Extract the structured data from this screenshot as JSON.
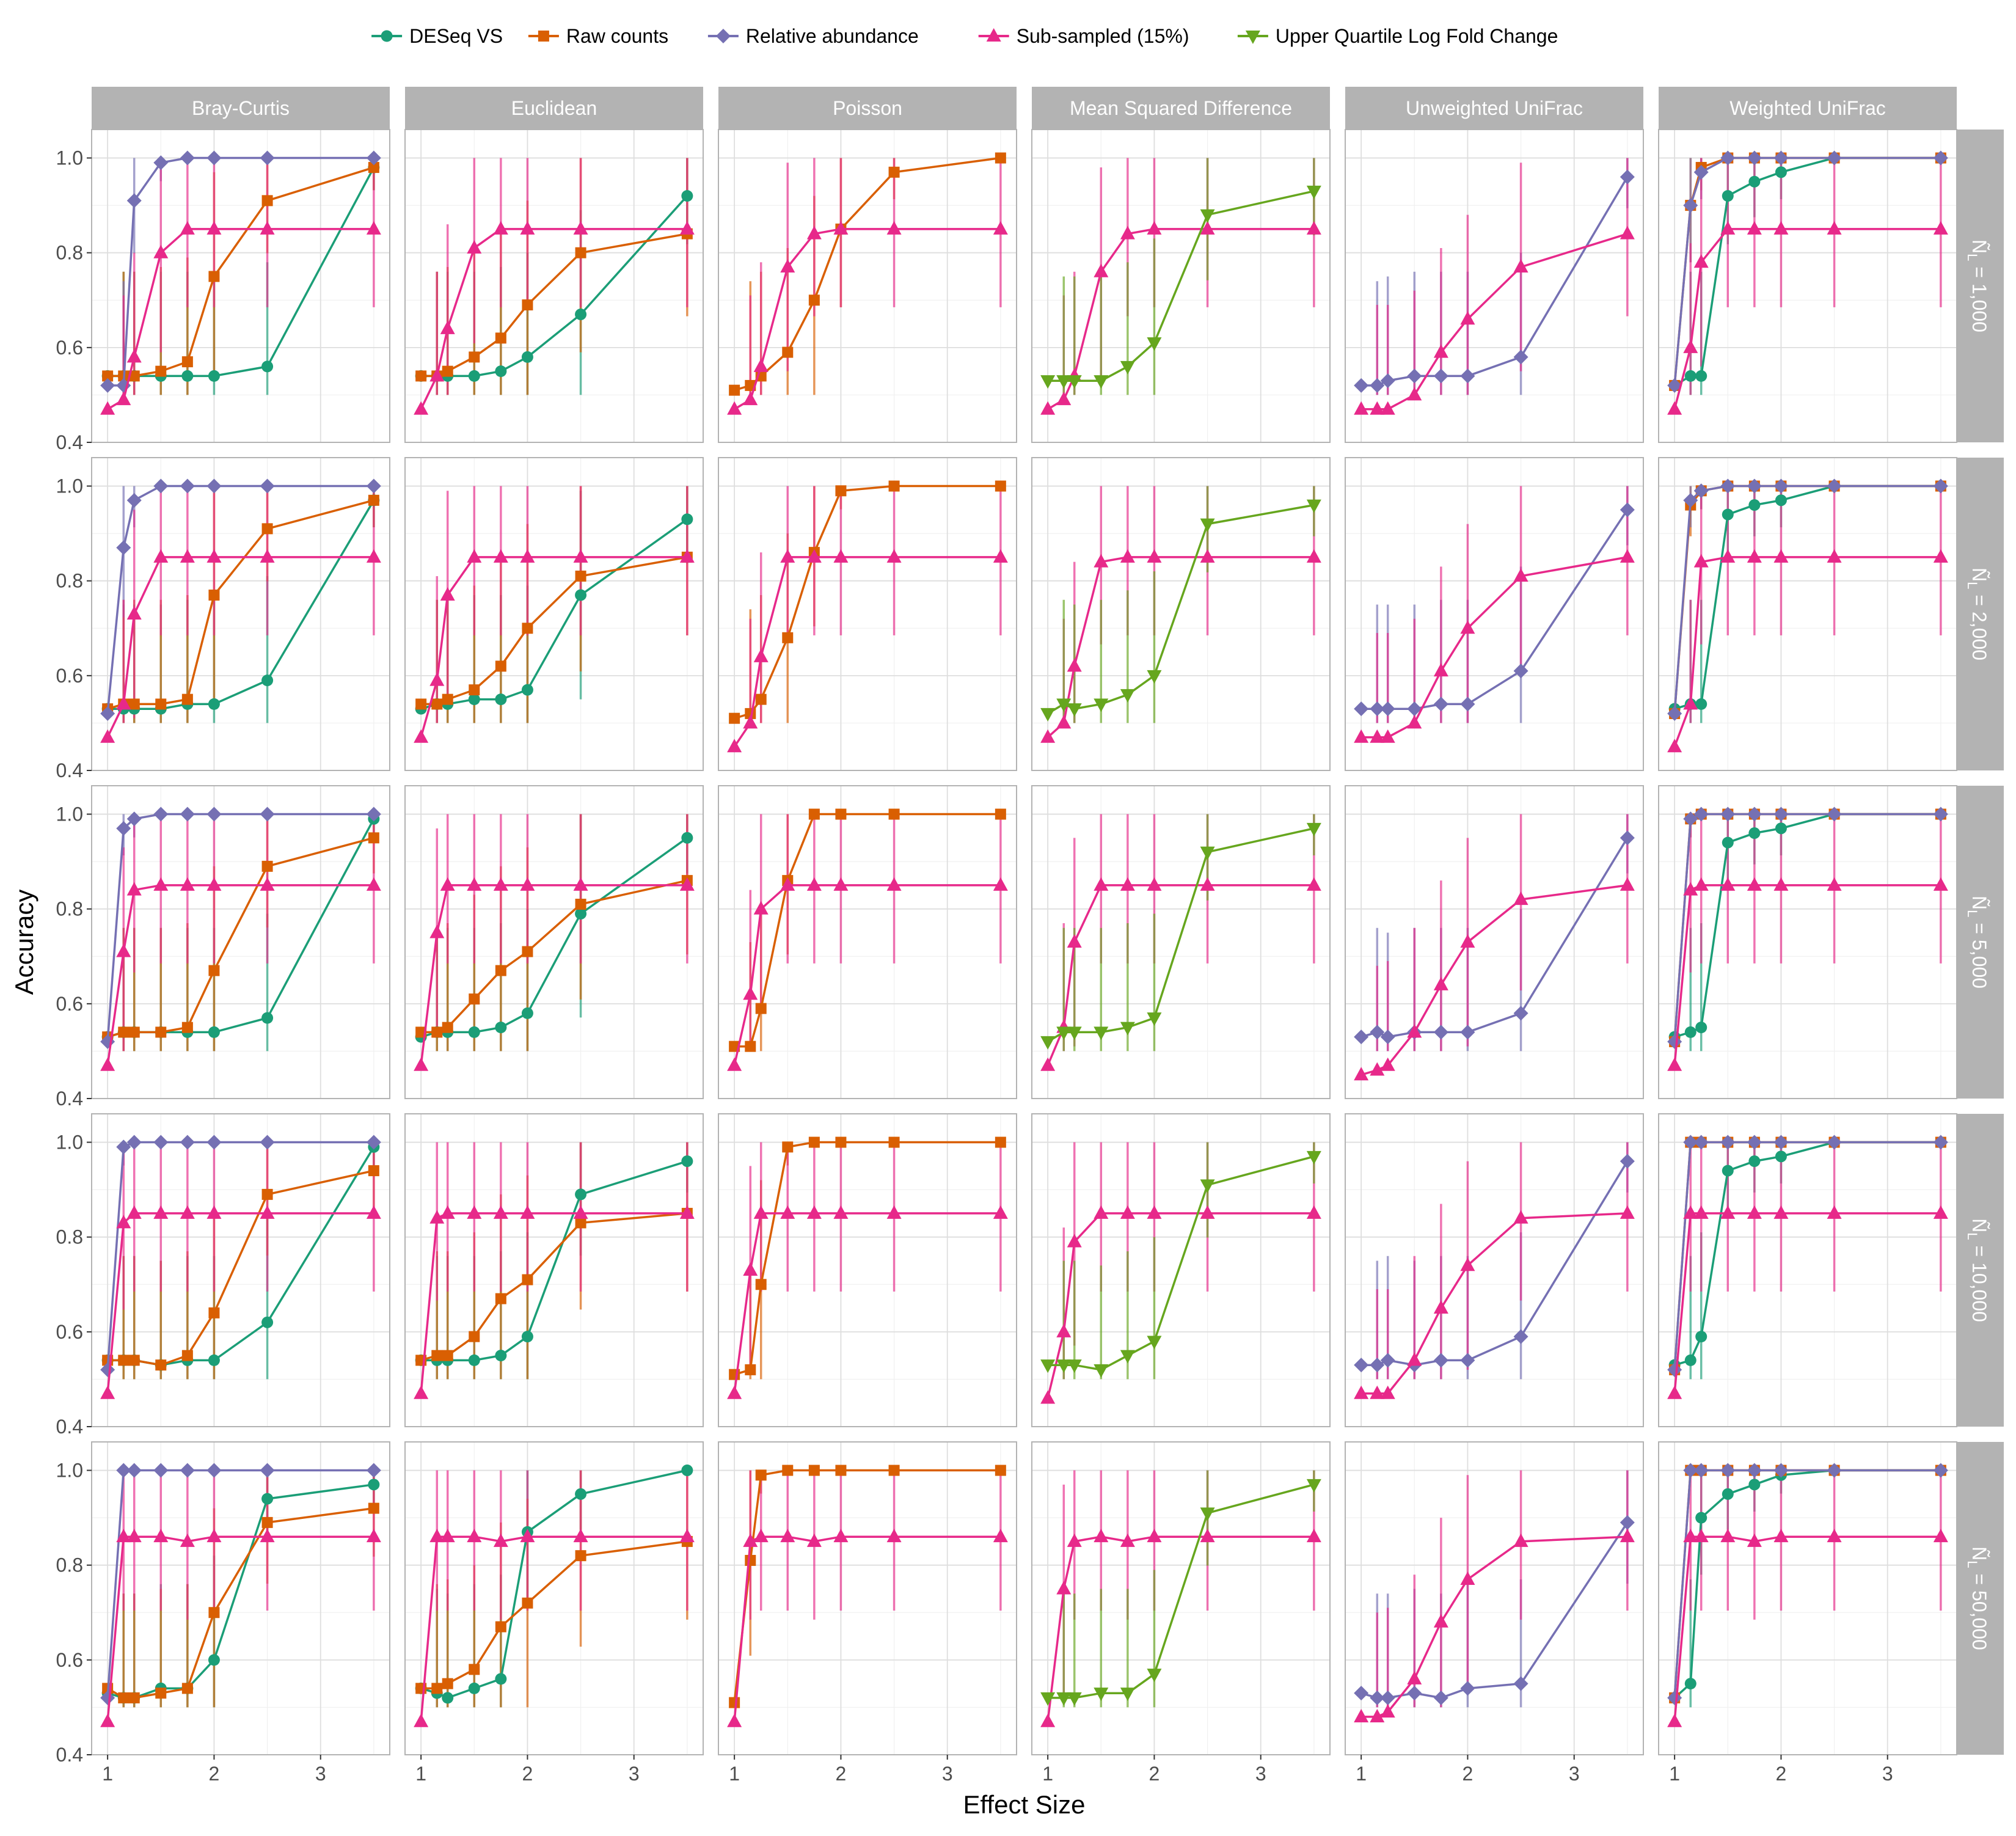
{
  "legend": {
    "items": [
      {
        "name": "DESeq VS",
        "color": "#1b9e77",
        "shape": "circle"
      },
      {
        "name": "Raw counts",
        "color": "#d95f02",
        "shape": "square"
      },
      {
        "name": "Relative abundance",
        "color": "#7570b3",
        "shape": "diamond"
      },
      {
        "name": "Sub-sampled (15%)",
        "color": "#e7298a",
        "shape": "triangle-up"
      },
      {
        "name": "Upper Quartile Log Fold Change",
        "color": "#66a61e",
        "shape": "triangle-down"
      }
    ]
  },
  "axes": {
    "xlabel": "Effect Size",
    "ylabel": "Accuracy",
    "x_ticks": [
      "1",
      "2",
      "3"
    ],
    "y_ticks": [
      "0.4",
      "0.6",
      "0.8",
      "1.0"
    ]
  },
  "chart_data": {
    "type": "line",
    "layout": "facet_grid",
    "xlim": [
      0.85,
      3.65
    ],
    "ylim": [
      0.4,
      1.06
    ],
    "x": [
      1.0,
      1.15,
      1.25,
      1.5,
      1.75,
      2.0,
      2.5,
      3.5
    ],
    "columns": [
      "Bray-Curtis",
      "Euclidean",
      "Poisson",
      "Mean Squared Difference",
      "Unweighted UniFrac",
      "Weighted UniFrac"
    ],
    "rows": [
      "Ñ_L = 1,000",
      "Ñ_L = 2,000",
      "Ñ_L = 5,000",
      "Ñ_L = 10,000",
      "Ñ_L = 50,000"
    ],
    "row_label_prefix": "Ñ",
    "row_label_sub": "L",
    "row_label_values": [
      "= 1,000",
      "= 2,000",
      "= 5,000",
      "= 10,000",
      "= 50,000"
    ],
    "grid": true,
    "series_by_column": [
      [
        "DESeq VS",
        "Raw counts",
        "Relative abundance",
        "Sub-sampled (15%)"
      ],
      [
        "DESeq VS",
        "Raw counts",
        "Sub-sampled (15%)"
      ],
      [
        "Raw counts",
        "Sub-sampled (15%)"
      ],
      [
        "Sub-sampled (15%)",
        "Upper Quartile Log Fold Change"
      ],
      [
        "Relative abundance",
        "Sub-sampled (15%)"
      ],
      [
        "DESeq VS",
        "Raw counts",
        "Relative abundance",
        "Sub-sampled (15%)"
      ]
    ],
    "values": [
      [
        {
          "DESeq VS": [
            0.54,
            0.54,
            0.54,
            0.54,
            0.54,
            0.54,
            0.56,
            0.98
          ],
          "Raw counts": [
            0.54,
            0.54,
            0.54,
            0.55,
            0.57,
            0.75,
            0.91,
            0.98
          ],
          "Relative abundance": [
            0.52,
            0.52,
            0.91,
            0.99,
            1.0,
            1.0,
            1.0,
            1.0
          ],
          "Sub-sampled (15%)": [
            0.47,
            0.49,
            0.58,
            0.8,
            0.85,
            0.85,
            0.85,
            0.85
          ]
        },
        {
          "DESeq VS": [
            0.54,
            0.54,
            0.54,
            0.54,
            0.55,
            0.58,
            0.67,
            0.92
          ],
          "Raw counts": [
            0.54,
            0.54,
            0.55,
            0.58,
            0.62,
            0.69,
            0.8,
            0.84
          ],
          "Sub-sampled (15%)": [
            0.47,
            0.54,
            0.64,
            0.81,
            0.85,
            0.85,
            0.85,
            0.85
          ]
        },
        {
          "Raw counts": [
            0.51,
            0.52,
            0.54,
            0.59,
            0.7,
            0.85,
            0.97,
            1.0
          ],
          "Sub-sampled (15%)": [
            0.47,
            0.49,
            0.56,
            0.77,
            0.84,
            0.85,
            0.85,
            0.85
          ]
        },
        {
          "Sub-sampled (15%)": [
            0.47,
            0.49,
            0.54,
            0.76,
            0.84,
            0.85,
            0.85,
            0.85
          ],
          "Upper Quartile Log Fold Change": [
            0.53,
            0.53,
            0.53,
            0.53,
            0.56,
            0.61,
            0.88,
            0.93
          ]
        },
        {
          "Relative abundance": [
            0.52,
            0.52,
            0.53,
            0.54,
            0.54,
            0.54,
            0.58,
            0.96
          ],
          "Sub-sampled (15%)": [
            0.47,
            0.47,
            0.47,
            0.5,
            0.59,
            0.66,
            0.77,
            0.84
          ]
        },
        {
          "DESeq VS": [
            0.52,
            0.54,
            0.54,
            0.92,
            0.95,
            0.97,
            1.0,
            1.0
          ],
          "Raw counts": [
            0.52,
            0.9,
            0.98,
            1.0,
            1.0,
            1.0,
            1.0,
            1.0
          ],
          "Relative abundance": [
            0.52,
            0.9,
            0.97,
            1.0,
            1.0,
            1.0,
            1.0,
            1.0
          ],
          "Sub-sampled (15%)": [
            0.47,
            0.6,
            0.78,
            0.85,
            0.85,
            0.85,
            0.85,
            0.85
          ]
        }
      ],
      [
        {
          "DESeq VS": [
            0.53,
            0.53,
            0.53,
            0.53,
            0.54,
            0.54,
            0.59,
            0.97
          ],
          "Raw counts": [
            0.53,
            0.54,
            0.54,
            0.54,
            0.55,
            0.77,
            0.91,
            0.97
          ],
          "Relative abundance": [
            0.52,
            0.87,
            0.97,
            1.0,
            1.0,
            1.0,
            1.0,
            1.0
          ],
          "Sub-sampled (15%)": [
            0.47,
            0.54,
            0.73,
            0.85,
            0.85,
            0.85,
            0.85,
            0.85
          ]
        },
        {
          "DESeq VS": [
            0.53,
            0.54,
            0.54,
            0.55,
            0.55,
            0.57,
            0.77,
            0.93
          ],
          "Raw counts": [
            0.54,
            0.54,
            0.55,
            0.57,
            0.62,
            0.7,
            0.81,
            0.85
          ],
          "Sub-sampled (15%)": [
            0.47,
            0.59,
            0.77,
            0.85,
            0.85,
            0.85,
            0.85,
            0.85
          ]
        },
        {
          "Raw counts": [
            0.51,
            0.52,
            0.55,
            0.68,
            0.86,
            0.99,
            1.0,
            1.0
          ],
          "Sub-sampled (15%)": [
            0.45,
            0.5,
            0.64,
            0.85,
            0.85,
            0.85,
            0.85,
            0.85
          ]
        },
        {
          "Sub-sampled (15%)": [
            0.47,
            0.5,
            0.62,
            0.84,
            0.85,
            0.85,
            0.85,
            0.85
          ],
          "Upper Quartile Log Fold Change": [
            0.52,
            0.54,
            0.53,
            0.54,
            0.56,
            0.6,
            0.92,
            0.96
          ]
        },
        {
          "Relative abundance": [
            0.53,
            0.53,
            0.53,
            0.53,
            0.54,
            0.54,
            0.61,
            0.95
          ],
          "Sub-sampled (15%)": [
            0.47,
            0.47,
            0.47,
            0.5,
            0.61,
            0.7,
            0.81,
            0.85
          ]
        },
        {
          "DESeq VS": [
            0.53,
            0.54,
            0.54,
            0.94,
            0.96,
            0.97,
            1.0,
            1.0
          ],
          "Raw counts": [
            0.52,
            0.96,
            0.99,
            1.0,
            1.0,
            1.0,
            1.0,
            1.0
          ],
          "Relative abundance": [
            0.52,
            0.97,
            0.99,
            1.0,
            1.0,
            1.0,
            1.0,
            1.0
          ],
          "Sub-sampled (15%)": [
            0.45,
            0.54,
            0.84,
            0.85,
            0.85,
            0.85,
            0.85,
            0.85
          ]
        }
      ],
      [
        {
          "DESeq VS": [
            0.53,
            0.54,
            0.54,
            0.54,
            0.54,
            0.54,
            0.57,
            0.99
          ],
          "Raw counts": [
            0.53,
            0.54,
            0.54,
            0.54,
            0.55,
            0.67,
            0.89,
            0.95
          ],
          "Relative abundance": [
            0.52,
            0.97,
            0.99,
            1.0,
            1.0,
            1.0,
            1.0,
            1.0
          ],
          "Sub-sampled (15%)": [
            0.47,
            0.71,
            0.84,
            0.85,
            0.85,
            0.85,
            0.85,
            0.85
          ]
        },
        {
          "DESeq VS": [
            0.53,
            0.54,
            0.54,
            0.54,
            0.55,
            0.58,
            0.79,
            0.95
          ],
          "Raw counts": [
            0.54,
            0.54,
            0.55,
            0.61,
            0.67,
            0.71,
            0.81,
            0.86
          ],
          "Sub-sampled (15%)": [
            0.47,
            0.75,
            0.85,
            0.85,
            0.85,
            0.85,
            0.85,
            0.85
          ]
        },
        {
          "Raw counts": [
            0.51,
            0.51,
            0.59,
            0.86,
            1.0,
            1.0,
            1.0,
            1.0
          ],
          "Sub-sampled (15%)": [
            0.47,
            0.62,
            0.8,
            0.85,
            0.85,
            0.85,
            0.85,
            0.85
          ]
        },
        {
          "Sub-sampled (15%)": [
            0.47,
            0.55,
            0.73,
            0.85,
            0.85,
            0.85,
            0.85,
            0.85
          ],
          "Upper Quartile Log Fold Change": [
            0.52,
            0.54,
            0.54,
            0.54,
            0.55,
            0.57,
            0.92,
            0.97
          ]
        },
        {
          "Relative abundance": [
            0.53,
            0.54,
            0.53,
            0.54,
            0.54,
            0.54,
            0.58,
            0.95
          ],
          "Sub-sampled (15%)": [
            0.45,
            0.46,
            0.47,
            0.54,
            0.64,
            0.73,
            0.82,
            0.85
          ]
        },
        {
          "DESeq VS": [
            0.53,
            0.54,
            0.55,
            0.94,
            0.96,
            0.97,
            1.0,
            1.0
          ],
          "Raw counts": [
            0.52,
            0.99,
            1.0,
            1.0,
            1.0,
            1.0,
            1.0,
            1.0
          ],
          "Relative abundance": [
            0.52,
            0.99,
            1.0,
            1.0,
            1.0,
            1.0,
            1.0,
            1.0
          ],
          "Sub-sampled (15%)": [
            0.47,
            0.84,
            0.85,
            0.85,
            0.85,
            0.85,
            0.85,
            0.85
          ]
        }
      ],
      [
        {
          "DESeq VS": [
            0.54,
            0.54,
            0.54,
            0.53,
            0.54,
            0.54,
            0.62,
            0.99
          ],
          "Raw counts": [
            0.54,
            0.54,
            0.54,
            0.53,
            0.55,
            0.64,
            0.89,
            0.94
          ],
          "Relative abundance": [
            0.52,
            0.99,
            1.0,
            1.0,
            1.0,
            1.0,
            1.0,
            1.0
          ],
          "Sub-sampled (15%)": [
            0.47,
            0.83,
            0.85,
            0.85,
            0.85,
            0.85,
            0.85,
            0.85
          ]
        },
        {
          "DESeq VS": [
            0.54,
            0.54,
            0.54,
            0.54,
            0.55,
            0.59,
            0.89,
            0.96
          ],
          "Raw counts": [
            0.54,
            0.55,
            0.55,
            0.59,
            0.67,
            0.71,
            0.83,
            0.85
          ],
          "Sub-sampled (15%)": [
            0.47,
            0.84,
            0.85,
            0.85,
            0.85,
            0.85,
            0.85,
            0.85
          ]
        },
        {
          "Raw counts": [
            0.51,
            0.52,
            0.7,
            0.99,
            1.0,
            1.0,
            1.0,
            1.0
          ],
          "Sub-sampled (15%)": [
            0.47,
            0.73,
            0.85,
            0.85,
            0.85,
            0.85,
            0.85,
            0.85
          ]
        },
        {
          "Sub-sampled (15%)": [
            0.46,
            0.6,
            0.79,
            0.85,
            0.85,
            0.85,
            0.85,
            0.85
          ],
          "Upper Quartile Log Fold Change": [
            0.53,
            0.53,
            0.53,
            0.52,
            0.55,
            0.58,
            0.91,
            0.97
          ]
        },
        {
          "Relative abundance": [
            0.53,
            0.53,
            0.54,
            0.53,
            0.54,
            0.54,
            0.59,
            0.96
          ],
          "Sub-sampled (15%)": [
            0.47,
            0.47,
            0.47,
            0.54,
            0.65,
            0.74,
            0.84,
            0.85
          ]
        },
        {
          "DESeq VS": [
            0.53,
            0.54,
            0.59,
            0.94,
            0.96,
            0.97,
            1.0,
            1.0
          ],
          "Raw counts": [
            0.52,
            1.0,
            1.0,
            1.0,
            1.0,
            1.0,
            1.0,
            1.0
          ],
          "Relative abundance": [
            0.52,
            1.0,
            1.0,
            1.0,
            1.0,
            1.0,
            1.0,
            1.0
          ],
          "Sub-sampled (15%)": [
            0.47,
            0.85,
            0.85,
            0.85,
            0.85,
            0.85,
            0.85,
            0.85
          ]
        }
      ],
      [
        {
          "DESeq VS": [
            0.53,
            0.52,
            0.52,
            0.54,
            0.54,
            0.6,
            0.94,
            0.97
          ],
          "Raw counts": [
            0.54,
            0.52,
            0.52,
            0.53,
            0.54,
            0.7,
            0.89,
            0.92
          ],
          "Relative abundance": [
            0.52,
            1.0,
            1.0,
            1.0,
            1.0,
            1.0,
            1.0,
            1.0
          ],
          "Sub-sampled (15%)": [
            0.47,
            0.86,
            0.86,
            0.86,
            0.85,
            0.86,
            0.86,
            0.86
          ]
        },
        {
          "DESeq VS": [
            0.54,
            0.53,
            0.52,
            0.54,
            0.56,
            0.87,
            0.95,
            1.0
          ],
          "Raw counts": [
            0.54,
            0.54,
            0.55,
            0.58,
            0.67,
            0.72,
            0.82,
            0.85
          ],
          "Sub-sampled (15%)": [
            0.47,
            0.86,
            0.86,
            0.86,
            0.85,
            0.86,
            0.86,
            0.86
          ]
        },
        {
          "Raw counts": [
            0.51,
            0.81,
            0.99,
            1.0,
            1.0,
            1.0,
            1.0,
            1.0
          ],
          "Sub-sampled (15%)": [
            0.47,
            0.85,
            0.86,
            0.86,
            0.85,
            0.86,
            0.86,
            0.86
          ]
        },
        {
          "Sub-sampled (15%)": [
            0.47,
            0.75,
            0.85,
            0.86,
            0.85,
            0.86,
            0.86,
            0.86
          ],
          "Upper Quartile Log Fold Change": [
            0.52,
            0.52,
            0.52,
            0.53,
            0.53,
            0.57,
            0.91,
            0.97
          ]
        },
        {
          "Relative abundance": [
            0.53,
            0.52,
            0.52,
            0.53,
            0.52,
            0.54,
            0.55,
            0.89
          ],
          "Sub-sampled (15%)": [
            0.48,
            0.48,
            0.49,
            0.56,
            0.68,
            0.77,
            0.85,
            0.86
          ]
        },
        {
          "DESeq VS": [
            0.52,
            0.55,
            0.9,
            0.95,
            0.97,
            0.99,
            1.0,
            1.0
          ],
          "Raw counts": [
            0.52,
            1.0,
            1.0,
            1.0,
            1.0,
            1.0,
            1.0,
            1.0
          ],
          "Relative abundance": [
            0.52,
            1.0,
            1.0,
            1.0,
            1.0,
            1.0,
            1.0,
            1.0
          ],
          "Sub-sampled (15%)": [
            0.47,
            0.86,
            0.86,
            0.86,
            0.85,
            0.86,
            0.86,
            0.86
          ]
        }
      ]
    ]
  }
}
